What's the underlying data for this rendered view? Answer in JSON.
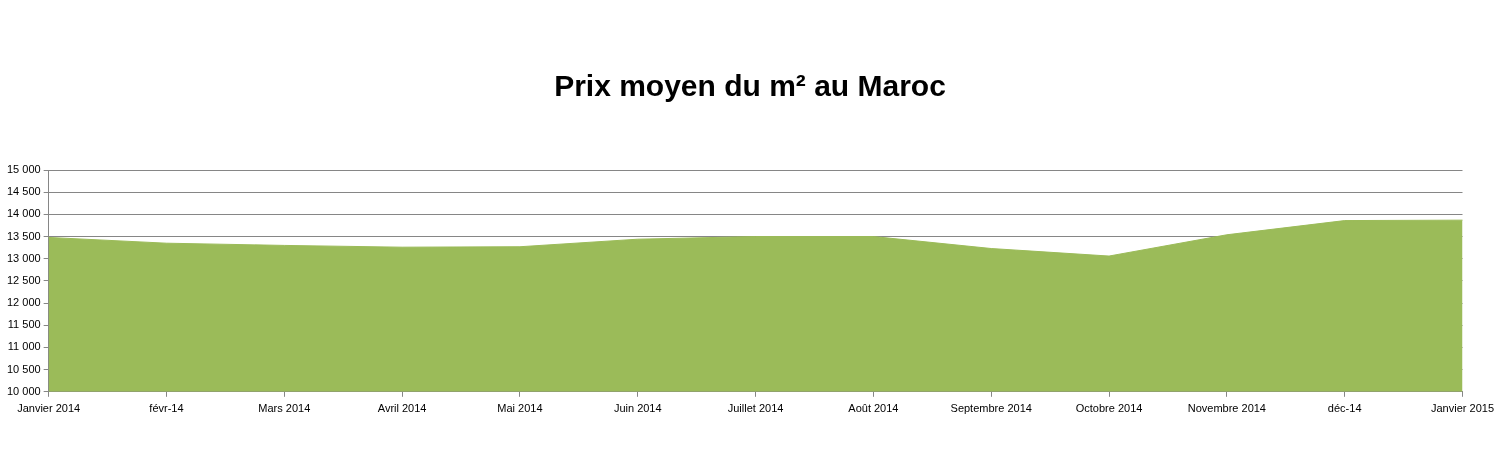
{
  "chart_data": {
    "type": "area",
    "title": "Prix moyen du m² au Maroc",
    "categories": [
      "Janvier 2014",
      "févr-14",
      "Mars 2014",
      "Avril 2014",
      "Mai 2014",
      "Juin 2014",
      "Juillet 2014",
      "Août 2014",
      "Septembre 2014",
      "Octobre 2014",
      "Novembre 2014",
      "déc-14",
      "Janvier 2015"
    ],
    "values": [
      13480,
      13350,
      13300,
      13260,
      13270,
      13440,
      13500,
      13500,
      13230,
      13060,
      13540,
      13860,
      13870
    ],
    "color": "#9bbb59",
    "ylim": [
      10000,
      15000
    ],
    "yticks": [
      {
        "value": 10000,
        "label": "10 000"
      },
      {
        "value": 10500,
        "label": "10 500"
      },
      {
        "value": 11000,
        "label": "11 000"
      },
      {
        "value": 11500,
        "label": "11 500"
      },
      {
        "value": 12000,
        "label": "12 000"
      },
      {
        "value": 12500,
        "label": "12 500"
      },
      {
        "value": 13000,
        "label": "13 000"
      },
      {
        "value": 13500,
        "label": "13 500"
      },
      {
        "value": 14000,
        "label": "14 000"
      },
      {
        "value": 14500,
        "label": "14 500"
      },
      {
        "value": 15000,
        "label": "15 000"
      }
    ],
    "grid": "y",
    "marker": "none"
  }
}
